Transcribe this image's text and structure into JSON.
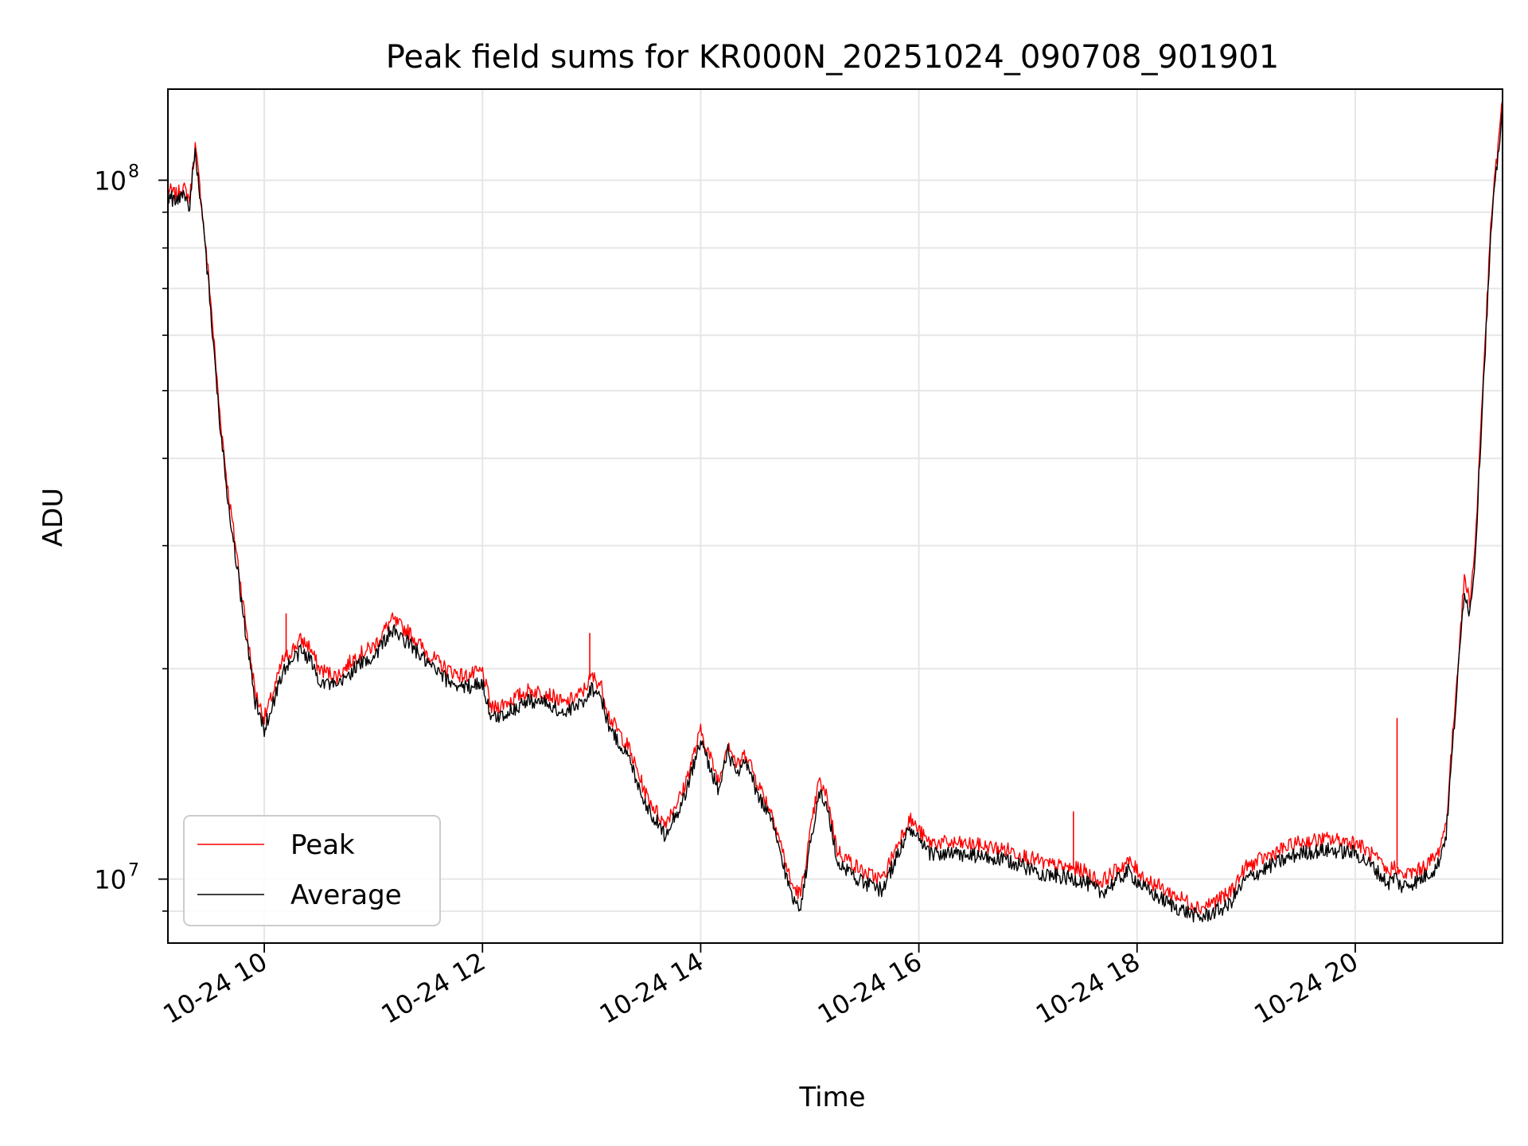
{
  "chart_data": {
    "type": "line",
    "title": "Peak field sums for KR000N_20251024_090708_901901",
    "xlabel": "Time",
    "ylabel": "ADU",
    "yscale": "log",
    "grid": true,
    "legend_position": "lower-left",
    "xlim": [
      "2025-10-24 09:07",
      "2025-10-24 21:21"
    ],
    "ylim": [
      8100000,
      135000000
    ],
    "x_ticks": [
      {
        "t": "2025-10-24 10:00",
        "label": "10-24 10"
      },
      {
        "t": "2025-10-24 12:00",
        "label": "10-24 12"
      },
      {
        "t": "2025-10-24 14:00",
        "label": "10-24 14"
      },
      {
        "t": "2025-10-24 16:00",
        "label": "10-24 16"
      },
      {
        "t": "2025-10-24 18:00",
        "label": "10-24 18"
      },
      {
        "t": "2025-10-24 20:00",
        "label": "10-24 20"
      }
    ],
    "y_major_ticks": [
      {
        "value": 10000000,
        "base": "10",
        "exp": "7"
      },
      {
        "value": 100000000,
        "base": "10",
        "exp": "8"
      }
    ],
    "y_minor_ticks": [
      9000000,
      20000000,
      30000000,
      40000000,
      50000000,
      60000000,
      70000000,
      80000000,
      90000000
    ],
    "series": [
      {
        "name": "Peak",
        "color": "#ff0000",
        "points": [
          [
            "2025-10-24 09:07",
            97000000
          ],
          [
            "2025-10-24 09:12",
            95000000
          ],
          [
            "2025-10-24 09:15",
            98000000
          ],
          [
            "2025-10-24 09:19",
            94000000
          ],
          [
            "2025-10-24 09:22",
            112000000
          ],
          [
            "2025-10-24 09:25",
            95000000
          ],
          [
            "2025-10-24 09:30",
            70000000
          ],
          [
            "2025-10-24 09:35",
            48000000
          ],
          [
            "2025-10-24 09:40",
            36000000
          ],
          [
            "2025-10-24 09:45",
            29000000
          ],
          [
            "2025-10-24 09:50",
            23000000
          ],
          [
            "2025-10-24 09:55",
            18500000
          ],
          [
            "2025-10-24 10:00",
            17000000
          ],
          [
            "2025-10-24 10:05",
            18500000
          ],
          [
            "2025-10-24 10:10",
            20500000
          ],
          [
            "2025-10-24 10:20",
            22000000
          ],
          [
            "2025-10-24 10:25",
            21500000
          ],
          [
            "2025-10-24 10:30",
            20000000
          ],
          [
            "2025-10-24 10:40",
            19500000
          ],
          [
            "2025-10-24 10:50",
            20800000
          ],
          [
            "2025-10-24 11:00",
            21500000
          ],
          [
            "2025-10-24 11:10",
            23500000
          ],
          [
            "2025-10-24 11:20",
            22500000
          ],
          [
            "2025-10-24 11:30",
            21000000
          ],
          [
            "2025-10-24 11:40",
            20000000
          ],
          [
            "2025-10-24 11:50",
            19500000
          ],
          [
            "2025-10-24 12:00",
            19800000
          ],
          [
            "2025-10-24 12:05",
            17500000
          ],
          [
            "2025-10-24 12:15",
            18000000
          ],
          [
            "2025-10-24 12:25",
            18600000
          ],
          [
            "2025-10-24 12:35",
            18500000
          ],
          [
            "2025-10-24 12:45",
            17800000
          ],
          [
            "2025-10-24 12:55",
            18500000
          ],
          [
            "2025-10-24 13:00",
            19500000
          ],
          [
            "2025-10-24 13:05",
            19000000
          ],
          [
            "2025-10-24 13:10",
            17000000
          ],
          [
            "2025-10-24 13:20",
            15500000
          ],
          [
            "2025-10-24 13:30",
            13200000
          ],
          [
            "2025-10-24 13:40",
            12000000
          ],
          [
            "2025-10-24 13:50",
            13300000
          ],
          [
            "2025-10-24 14:00",
            16300000
          ],
          [
            "2025-10-24 14:05",
            15000000
          ],
          [
            "2025-10-24 14:10",
            13800000
          ],
          [
            "2025-10-24 14:15",
            15800000
          ],
          [
            "2025-10-24 14:20",
            14500000
          ],
          [
            "2025-10-24 14:25",
            15200000
          ],
          [
            "2025-10-24 14:30",
            14000000
          ],
          [
            "2025-10-24 14:40",
            12300000
          ],
          [
            "2025-10-24 14:50",
            9800000
          ],
          [
            "2025-10-24 14:55",
            9500000
          ],
          [
            "2025-10-24 15:00",
            11500000
          ],
          [
            "2025-10-24 15:05",
            13800000
          ],
          [
            "2025-10-24 15:10",
            13000000
          ],
          [
            "2025-10-24 15:15",
            11000000
          ],
          [
            "2025-10-24 15:30",
            10200000
          ],
          [
            "2025-10-24 15:40",
            10000000
          ],
          [
            "2025-10-24 15:50",
            11500000
          ],
          [
            "2025-10-24 15:55",
            12200000
          ],
          [
            "2025-10-24 16:05",
            11300000
          ],
          [
            "2025-10-24 16:30",
            11200000
          ],
          [
            "2025-10-24 16:50",
            11000000
          ],
          [
            "2025-10-24 17:10",
            10500000
          ],
          [
            "2025-10-24 17:30",
            10300000
          ],
          [
            "2025-10-24 17:40",
            9900000
          ],
          [
            "2025-10-24 17:55",
            10600000
          ],
          [
            "2025-10-24 18:05",
            10000000
          ],
          [
            "2025-10-24 18:20",
            9500000
          ],
          [
            "2025-10-24 18:35",
            9100000
          ],
          [
            "2025-10-24 18:50",
            9500000
          ],
          [
            "2025-10-24 19:00",
            10400000
          ],
          [
            "2025-10-24 19:15",
            10900000
          ],
          [
            "2025-10-24 19:30",
            11300000
          ],
          [
            "2025-10-24 19:45",
            11400000
          ],
          [
            "2025-10-24 20:00",
            11300000
          ],
          [
            "2025-10-24 20:10",
            10800000
          ],
          [
            "2025-10-24 20:18",
            10200000
          ],
          [
            "2025-10-24 20:22",
            10500000
          ],
          [
            "2025-10-24 20:25",
            10100000
          ],
          [
            "2025-10-24 20:35",
            10300000
          ],
          [
            "2025-10-24 20:45",
            10800000
          ],
          [
            "2025-10-24 20:50",
            12000000
          ],
          [
            "2025-10-24 20:55",
            18000000
          ],
          [
            "2025-10-24 21:00",
            27000000
          ],
          [
            "2025-10-24 21:03",
            25000000
          ],
          [
            "2025-10-24 21:06",
            30000000
          ],
          [
            "2025-10-24 21:10",
            50000000
          ],
          [
            "2025-10-24 21:15",
            90000000
          ],
          [
            "2025-10-24 21:21",
            130000000
          ]
        ]
      },
      {
        "name": "Average",
        "color": "#000000",
        "points": [
          [
            "2025-10-24 09:07",
            95000000
          ],
          [
            "2025-10-24 09:12",
            93000000
          ],
          [
            "2025-10-24 09:15",
            96000000
          ],
          [
            "2025-10-24 09:19",
            92000000
          ],
          [
            "2025-10-24 09:22",
            110000000
          ],
          [
            "2025-10-24 09:25",
            93000000
          ],
          [
            "2025-10-24 09:30",
            68000000
          ],
          [
            "2025-10-24 09:35",
            46500000
          ],
          [
            "2025-10-24 09:40",
            35000000
          ],
          [
            "2025-10-24 09:45",
            28000000
          ],
          [
            "2025-10-24 09:50",
            22300000
          ],
          [
            "2025-10-24 09:55",
            17900000
          ],
          [
            "2025-10-24 10:00",
            16400000
          ],
          [
            "2025-10-24 10:05",
            17900000
          ],
          [
            "2025-10-24 10:10",
            19800000
          ],
          [
            "2025-10-24 10:20",
            21200000
          ],
          [
            "2025-10-24 10:25",
            20700000
          ],
          [
            "2025-10-24 10:30",
            19300000
          ],
          [
            "2025-10-24 10:40",
            18800000
          ],
          [
            "2025-10-24 10:50",
            20100000
          ],
          [
            "2025-10-24 11:00",
            20800000
          ],
          [
            "2025-10-24 11:10",
            22700000
          ],
          [
            "2025-10-24 11:20",
            21700000
          ],
          [
            "2025-10-24 11:30",
            20300000
          ],
          [
            "2025-10-24 11:40",
            19300000
          ],
          [
            "2025-10-24 11:50",
            18800000
          ],
          [
            "2025-10-24 12:00",
            19100000
          ],
          [
            "2025-10-24 12:05",
            16900000
          ],
          [
            "2025-10-24 12:15",
            17400000
          ],
          [
            "2025-10-24 12:25",
            18000000
          ],
          [
            "2025-10-24 12:35",
            17900000
          ],
          [
            "2025-10-24 12:45",
            17200000
          ],
          [
            "2025-10-24 12:55",
            17900000
          ],
          [
            "2025-10-24 13:00",
            18800000
          ],
          [
            "2025-10-24 13:05",
            18300000
          ],
          [
            "2025-10-24 13:10",
            16400000
          ],
          [
            "2025-10-24 13:20",
            15000000
          ],
          [
            "2025-10-24 13:30",
            12750000
          ],
          [
            "2025-10-24 13:40",
            11600000
          ],
          [
            "2025-10-24 13:50",
            12850000
          ],
          [
            "2025-10-24 14:00",
            15750000
          ],
          [
            "2025-10-24 14:05",
            14500000
          ],
          [
            "2025-10-24 14:10",
            13350000
          ],
          [
            "2025-10-24 14:15",
            15250000
          ],
          [
            "2025-10-24 14:20",
            14000000
          ],
          [
            "2025-10-24 14:25",
            14700000
          ],
          [
            "2025-10-24 14:30",
            13500000
          ],
          [
            "2025-10-24 14:40",
            11900000
          ],
          [
            "2025-10-24 14:50",
            9450000
          ],
          [
            "2025-10-24 14:55",
            9150000
          ],
          [
            "2025-10-24 15:00",
            11100000
          ],
          [
            "2025-10-24 15:05",
            13350000
          ],
          [
            "2025-10-24 15:10",
            12550000
          ],
          [
            "2025-10-24 15:15",
            10600000
          ],
          [
            "2025-10-24 15:30",
            9850000
          ],
          [
            "2025-10-24 15:40",
            9650000
          ],
          [
            "2025-10-24 15:50",
            11100000
          ],
          [
            "2025-10-24 15:55",
            11800000
          ],
          [
            "2025-10-24 16:05",
            10900000
          ],
          [
            "2025-10-24 16:30",
            10800000
          ],
          [
            "2025-10-24 16:50",
            10600000
          ],
          [
            "2025-10-24 17:10",
            10150000
          ],
          [
            "2025-10-24 17:30",
            9950000
          ],
          [
            "2025-10-24 17:40",
            9550000
          ],
          [
            "2025-10-24 17:55",
            10250000
          ],
          [
            "2025-10-24 18:05",
            9650000
          ],
          [
            "2025-10-24 18:20",
            9150000
          ],
          [
            "2025-10-24 18:35",
            8800000
          ],
          [
            "2025-10-24 18:50",
            9150000
          ],
          [
            "2025-10-24 19:00",
            10000000
          ],
          [
            "2025-10-24 19:15",
            10500000
          ],
          [
            "2025-10-24 19:30",
            10900000
          ],
          [
            "2025-10-24 19:45",
            11000000
          ],
          [
            "2025-10-24 20:00",
            10900000
          ],
          [
            "2025-10-24 20:10",
            10400000
          ],
          [
            "2025-10-24 20:18",
            9850000
          ],
          [
            "2025-10-24 20:22",
            10100000
          ],
          [
            "2025-10-24 20:25",
            9750000
          ],
          [
            "2025-10-24 20:35",
            9950000
          ],
          [
            "2025-10-24 20:45",
            10400000
          ],
          [
            "2025-10-24 20:50",
            11600000
          ],
          [
            "2025-10-24 20:55",
            17400000
          ],
          [
            "2025-10-24 21:00",
            26000000
          ],
          [
            "2025-10-24 21:03",
            24000000
          ],
          [
            "2025-10-24 21:06",
            29000000
          ],
          [
            "2025-10-24 21:10",
            48500000
          ],
          [
            "2025-10-24 21:15",
            87000000
          ],
          [
            "2025-10-24 21:21",
            127000000
          ]
        ]
      }
    ],
    "annotations_spikes": [
      {
        "series": "Peak",
        "t": "2025-10-24 10:12",
        "value": 24000000
      },
      {
        "series": "Peak",
        "t": "2025-10-24 12:59",
        "value": 22500000
      },
      {
        "series": "Peak",
        "t": "2025-10-24 17:25",
        "value": 12500000
      },
      {
        "series": "Peak",
        "t": "2025-10-24 20:23",
        "value": 17000000
      }
    ]
  }
}
